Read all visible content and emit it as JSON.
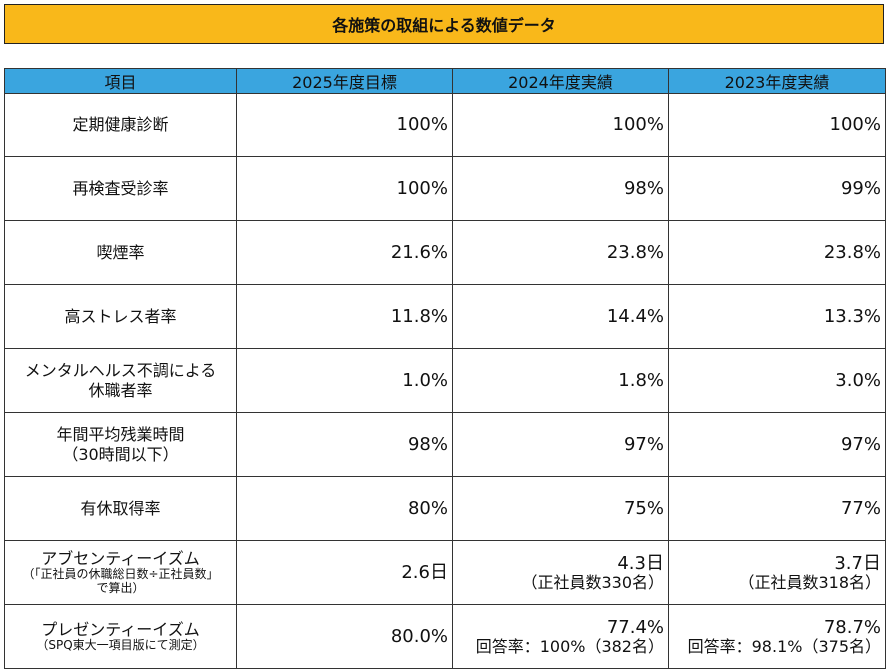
{
  "title": "各施策の取組による数値データ",
  "headers": [
    "項目",
    "2025年度目標",
    "2024年度実績",
    "2023年度実績"
  ],
  "rows": [
    {
      "label": "定期健康診断",
      "target": "100%",
      "y2024": "100%",
      "y2023": "100%"
    },
    {
      "label": "再検査受診率",
      "target": "100%",
      "y2024": "98%",
      "y2023": "99%"
    },
    {
      "label": "喫煙率",
      "target": "21.6%",
      "y2024": "23.8%",
      "y2023": "23.8%"
    },
    {
      "label": "高ストレス者率",
      "target": "11.8%",
      "y2024": "14.4%",
      "y2023": "13.3%"
    },
    {
      "label_line1": "メンタルヘルス不調による",
      "label_line2": "休職者率",
      "target": "1.0%",
      "y2024": "1.8%",
      "y2023": "3.0%"
    },
    {
      "label_line1": "年間平均残業時間",
      "label_line2": "（30時間以下）",
      "target": "98%",
      "y2024": "97%",
      "y2023": "97%"
    },
    {
      "label": "有休取得率",
      "target": "80%",
      "y2024": "75%",
      "y2023": "77%"
    },
    {
      "label": "アブセンティーイズム",
      "note1": "（「正社員の休職総日数÷正社員数」",
      "note2": "で算出）",
      "target": "2.6日",
      "y2024": "4.3日",
      "y2024_note": "（正社員数330名）",
      "y2023": "3.7日",
      "y2023_note": "（正社員数318名）"
    },
    {
      "label": "プレゼンティーイズム",
      "note1": "（SPQ東大一項目版にて測定）",
      "target": "80.0%",
      "y2024": "77.4%",
      "y2024_note": "回答率：100%（382名）",
      "y2023": "78.7%",
      "y2023_note": "回答率：98.1%（375名）"
    }
  ]
}
